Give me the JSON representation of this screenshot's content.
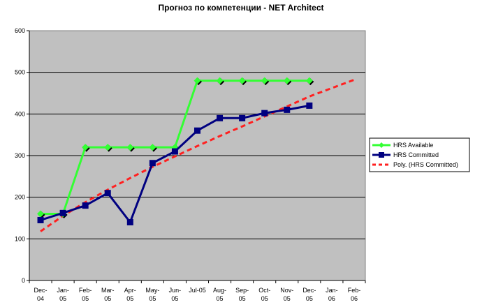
{
  "chart_data": {
    "type": "line",
    "title": "Прогноз по компетенции - NET Architect",
    "xlabel": "",
    "ylabel": "",
    "ylim": [
      0,
      600
    ],
    "yticks": [
      "0",
      "100",
      "200",
      "300",
      "400",
      "500",
      "600"
    ],
    "categories": [
      [
        "Dec-",
        "04"
      ],
      [
        "Jan-",
        "05"
      ],
      [
        "Feb-",
        "05"
      ],
      [
        "Mar-",
        "05"
      ],
      [
        "Apr-",
        "05"
      ],
      [
        "May-",
        "05"
      ],
      [
        "Jun-",
        "05"
      ],
      [
        "Jul-05",
        ""
      ],
      [
        "Aug-",
        "05"
      ],
      [
        "Sep-",
        "05"
      ],
      [
        "Oct-",
        "05"
      ],
      [
        "Nov-",
        "05"
      ],
      [
        "Dec-",
        "05"
      ],
      [
        "Jan-",
        "06"
      ],
      [
        "Feb-",
        "06"
      ]
    ],
    "grid": true,
    "legend_position": "right",
    "plot_background": "#c0c0c0",
    "series": [
      {
        "name": "HRS Available",
        "color": "#33ff33",
        "marker": "diamond",
        "values": [
          160,
          160,
          320,
          320,
          320,
          320,
          320,
          480,
          480,
          480,
          480,
          480,
          480,
          null,
          null
        ]
      },
      {
        "name": "HRS Committed",
        "color": "#000080",
        "marker": "square",
        "values": [
          145,
          162,
          180,
          210,
          140,
          282,
          310,
          360,
          390,
          390,
          402,
          410,
          420,
          null,
          null
        ]
      },
      {
        "name": "Poly. (HRS Committed)",
        "color": "#ff2020",
        "style": "dashed",
        "values": [
          118,
          155,
          188,
          218,
          246,
          273,
          298,
          323,
          347,
          370,
          394,
          418,
          442,
          462,
          482
        ]
      }
    ]
  }
}
